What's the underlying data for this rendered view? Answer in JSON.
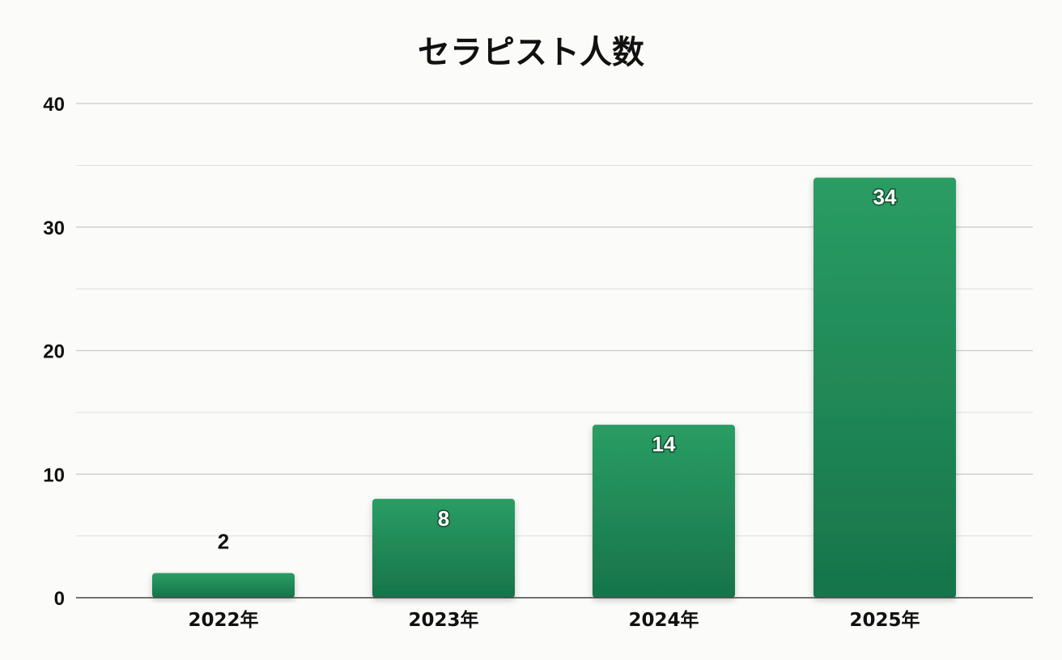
{
  "chart_data": {
    "type": "bar",
    "title": "セラピスト人数",
    "categories": [
      "2022年",
      "2023年",
      "2024年",
      "2025年"
    ],
    "values": [
      2,
      8,
      14,
      34
    ],
    "xlabel": "",
    "ylabel": "",
    "ylim": [
      0,
      40
    ],
    "yticks": [
      0,
      10,
      20,
      30,
      40
    ],
    "grid": true,
    "legend": "none",
    "colors": {
      "bar_top": "#2a9d64",
      "bar_bottom": "#17744a",
      "grid": "#d6d6d6",
      "axis": "#444444"
    }
  }
}
